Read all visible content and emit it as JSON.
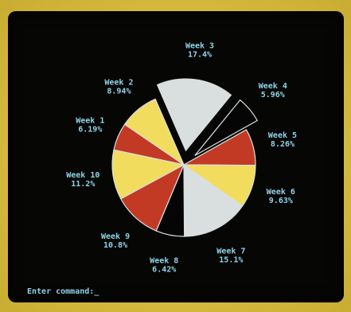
{
  "chart_data": {
    "type": "pie",
    "exploded": [
      "Week 3",
      "Week 4"
    ],
    "slices": [
      {
        "label": "Week 1",
        "value": 6.19,
        "value_label": "6.19%",
        "color": "#c33a24"
      },
      {
        "label": "Week 2",
        "value": 8.94,
        "value_label": "8.94%",
        "color": "#f2dc5d"
      },
      {
        "label": "Week 3",
        "value": 17.4,
        "value_label": "17.4%",
        "color": "#d9dedf"
      },
      {
        "label": "Week 4",
        "value": 5.96,
        "value_label": "5.96%",
        "color": "#050505"
      },
      {
        "label": "Week 5",
        "value": 8.26,
        "value_label": "8.26%",
        "color": "#c33a24"
      },
      {
        "label": "Week 6",
        "value": 9.63,
        "value_label": "9.63%",
        "color": "#f2dc5d"
      },
      {
        "label": "Week 7",
        "value": 15.1,
        "value_label": "15.1%",
        "color": "#d9dedf"
      },
      {
        "label": "Week 8",
        "value": 6.42,
        "value_label": "6.42%",
        "color": "#050505"
      },
      {
        "label": "Week 9",
        "value": 10.8,
        "value_label": "10.8%",
        "color": "#c33a24"
      },
      {
        "label": "Week 10",
        "value": 11.2,
        "value_label": "11.2%",
        "color": "#f2dc5d"
      }
    ]
  },
  "prompt": {
    "text": "Enter command:_"
  }
}
